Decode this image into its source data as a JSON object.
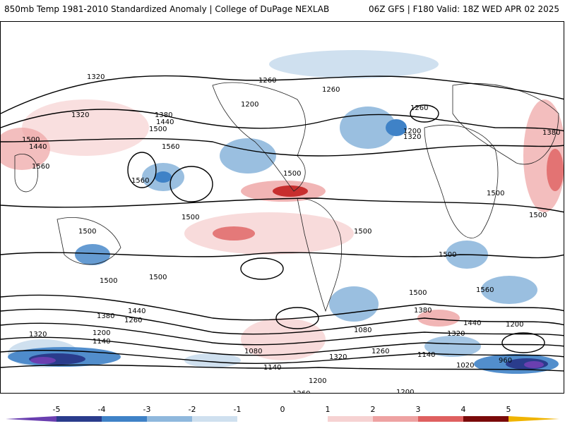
{
  "header": {
    "left_title": "850mb Temp 1981-2010 Standardized Anomaly | College of DuPage NEXLAB",
    "right_title": "06Z GFS | F180 Valid: 18Z WED APR 02 2025"
  },
  "map": {
    "contour_labels": [
      "1320",
      "1260",
      "1260",
      "1200",
      "1320",
      "1380",
      "1440",
      "1500",
      "1440",
      "1560",
      "1500",
      "1560",
      "1500",
      "1500",
      "1500",
      "1500",
      "1560",
      "1500",
      "1440",
      "1380",
      "1320",
      "1260",
      "1200",
      "1140",
      "1080",
      "1020",
      "960",
      "1200",
      "1320",
      "1260",
      "1380",
      "1440",
      "1500",
      "1560",
      "1500",
      "1500",
      "1500",
      "1500",
      "1380",
      "1320",
      "1260",
      "1200",
      "1140",
      "1080",
      "1320",
      "1260",
      "1200",
      "1140",
      "1200"
    ],
    "colors": {
      "neg5": "#6a3fb0",
      "neg4": "#2a3c8c",
      "neg3": "#3f82c7",
      "neg2": "#8fb8dd",
      "neg1": "#cfe0ef",
      "zero": "#ffffff",
      "pos1": "#f6d2d2",
      "pos2": "#eea2a2",
      "pos3": "#df6060",
      "pos4": "#c21f1f",
      "pos5": "#7a0a0a",
      "pos6": "#f0b400"
    }
  },
  "colorbar": {
    "ticks": [
      "-5",
      "-4",
      "-3",
      "-2",
      "-1",
      "0",
      "1",
      "2",
      "3",
      "4",
      "5"
    ],
    "range": [
      -6,
      6
    ]
  }
}
